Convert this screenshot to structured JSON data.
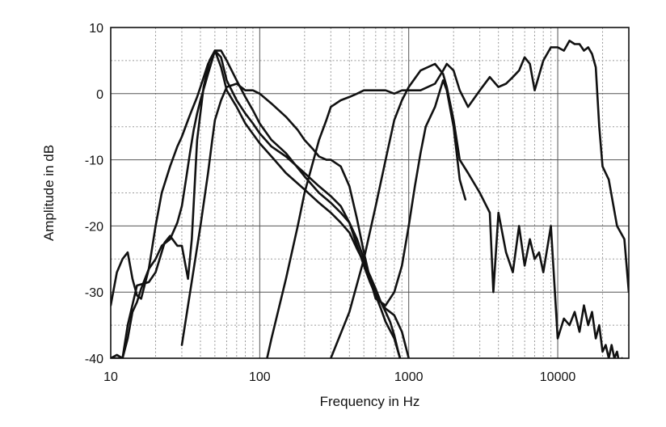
{
  "chart_data": {
    "type": "line",
    "title": "",
    "xlabel": "Frequency in Hz",
    "ylabel": "Amplitude in dB",
    "x_scale": "log",
    "xlim": [
      10,
      30000
    ],
    "ylim": [
      -40,
      10
    ],
    "x_ticks": [
      10,
      100,
      1000,
      10000
    ],
    "x_tick_labels": [
      "10",
      "100",
      "1000",
      "10000"
    ],
    "y_ticks": [
      10,
      0,
      -10,
      -20,
      -30,
      -40
    ],
    "y_tick_labels": [
      "10",
      "0",
      "-10",
      "-20",
      "-30",
      "-40"
    ],
    "grid": true,
    "legend": "none",
    "series": [
      {
        "x": [
          10,
          11,
          12,
          13,
          15,
          18,
          20,
          23,
          25,
          28,
          30,
          33,
          35,
          38,
          42,
          46,
          50,
          55,
          60,
          70,
          80,
          100,
          120,
          150,
          200,
          250,
          300,
          350,
          400,
          450,
          500,
          550,
          600,
          650,
          700,
          750,
          800,
          850,
          900,
          1000
        ],
        "y": [
          -40,
          -39.5,
          -40,
          -35,
          -29,
          -28.5,
          -27,
          -22.5,
          -21.5,
          -23,
          -23,
          -28,
          -22,
          -7,
          1,
          5,
          6.5,
          4,
          0.5,
          -2,
          -4.5,
          -7.5,
          -9.5,
          -12,
          -14.5,
          -16.5,
          -18,
          -19.5,
          -21,
          -23.5,
          -25.5,
          -27.5,
          -29.5,
          -31.5,
          -33,
          -34.5,
          -36.5,
          -39,
          -41,
          -44
        ]
      },
      {
        "x": [
          10,
          10.5,
          11,
          12,
          13,
          14,
          15,
          16,
          18,
          20,
          22,
          25,
          28,
          30,
          33,
          35,
          38,
          40,
          45,
          50,
          55,
          60,
          70,
          80,
          90,
          100,
          120,
          150,
          200,
          250,
          300,
          350,
          400,
          450,
          500,
          550,
          600,
          650,
          700,
          800,
          900,
          1000
        ],
        "y": [
          -40,
          -40,
          -40,
          -40,
          -37,
          -33,
          -31.5,
          -29.5,
          -26.5,
          -20,
          -15,
          -11,
          -8,
          -6.5,
          -4,
          -2.5,
          -0.5,
          1,
          4.5,
          6.5,
          5.5,
          2,
          -1,
          -3,
          -4.5,
          -6,
          -8,
          -9.5,
          -12,
          -14,
          -15.5,
          -17,
          -19.5,
          -23,
          -26,
          -28.5,
          -30.5,
          -32.5,
          -34.5,
          -37,
          -41,
          -44
        ]
      },
      {
        "x": [
          10,
          11,
          12,
          13,
          14,
          15,
          16,
          18,
          20,
          22,
          25,
          28,
          30,
          32,
          34,
          36,
          38,
          40,
          45,
          50,
          55,
          60,
          70,
          80,
          90,
          100,
          120,
          150,
          200,
          250,
          300,
          350,
          400,
          450,
          500,
          550,
          600,
          650,
          700,
          800,
          900,
          1000
        ],
        "y": [
          -32,
          -27,
          -25,
          -24,
          -28,
          -30.5,
          -31,
          -26.5,
          -25,
          -23,
          -22,
          -19.5,
          -17,
          -13,
          -9,
          -5.5,
          -3,
          -1,
          3,
          6.5,
          6.5,
          5,
          2,
          -0.5,
          -2.5,
          -4.5,
          -7,
          -9,
          -12.5,
          -15,
          -16.5,
          -18,
          -19.5,
          -22,
          -25,
          -28,
          -30,
          -31.5,
          -32.5,
          -33.5,
          -36,
          -40
        ]
      },
      {
        "x": [
          30,
          40,
          45,
          48,
          50,
          55,
          60,
          70,
          80,
          90,
          100,
          120,
          150,
          180,
          200,
          230,
          250,
          280,
          300,
          350,
          400,
          450,
          500,
          550,
          600,
          700,
          800,
          900,
          1000,
          1100,
          1200,
          1300,
          1500,
          1700,
          1800,
          2000,
          2200,
          2400
        ],
        "y": [
          -38,
          -20,
          -12,
          -7,
          -4,
          -1,
          1,
          1.5,
          0.5,
          0.5,
          0,
          -1.5,
          -3.5,
          -5.5,
          -7,
          -8.5,
          -9.5,
          -10,
          -10,
          -11,
          -14,
          -19,
          -24,
          -28,
          -31,
          -32,
          -30,
          -26,
          -20,
          -14,
          -9,
          -5,
          -2,
          2,
          0.5,
          -5,
          -13,
          -16
        ]
      },
      {
        "x": [
          100,
          120,
          150,
          180,
          200,
          230,
          250,
          280,
          300,
          350,
          400,
          450,
          500,
          600,
          700,
          800,
          900,
          1000,
          1200,
          1500,
          1700,
          1800,
          2000,
          2200,
          2500,
          3000,
          3500,
          4000,
          4500,
          5000,
          5500,
          6000,
          6500,
          7000,
          8000,
          9000,
          10000,
          11000,
          12000,
          13000,
          14000,
          15000,
          16000,
          17000,
          18000,
          19000,
          20000,
          22000,
          25000,
          28000,
          30000
        ],
        "y": [
          -45,
          -37,
          -28,
          -20,
          -15,
          -10,
          -7,
          -4,
          -2,
          -1,
          -0.5,
          0,
          0.5,
          0.5,
          0.5,
          0,
          0.5,
          0.5,
          0.5,
          1.5,
          3.5,
          4.5,
          3.5,
          0.5,
          -2,
          0.5,
          2.5,
          1,
          1.5,
          2.5,
          3.5,
          5.5,
          4.5,
          0.5,
          5,
          7,
          7,
          6.5,
          8,
          7.5,
          7.5,
          6.5,
          7,
          6,
          4,
          -5,
          -11,
          -13,
          -20,
          -22,
          -30
        ]
      },
      {
        "x": [
          200,
          300,
          400,
          500,
          600,
          700,
          800,
          900,
          1000,
          1200,
          1500,
          1700,
          1800,
          2000,
          2200,
          2500,
          3000,
          3500,
          3700,
          4000,
          4500,
          5000,
          5500,
          6000,
          6500,
          7000,
          7500,
          8000,
          9000,
          10000,
          11000,
          12000,
          13000,
          14000,
          15000,
          16000,
          17000,
          18000,
          19000,
          20000,
          21000,
          22000,
          23000,
          24000,
          25000,
          26000,
          27000,
          28000,
          29000,
          30000
        ],
        "y": [
          -45,
          -40,
          -33,
          -25,
          -17,
          -10,
          -4,
          -1,
          1,
          3.5,
          4.5,
          3,
          1,
          -4,
          -10,
          -12,
          -15,
          -18,
          -30,
          -18,
          -24,
          -27,
          -20,
          -26,
          -22,
          -25,
          -24,
          -27,
          -20,
          -37,
          -34,
          -35,
          -33,
          -36,
          -32,
          -35,
          -33,
          -37,
          -35,
          -39,
          -38,
          -40,
          -38,
          -40,
          -39,
          -41,
          -40,
          -42,
          -41,
          -43
        ]
      }
    ]
  }
}
